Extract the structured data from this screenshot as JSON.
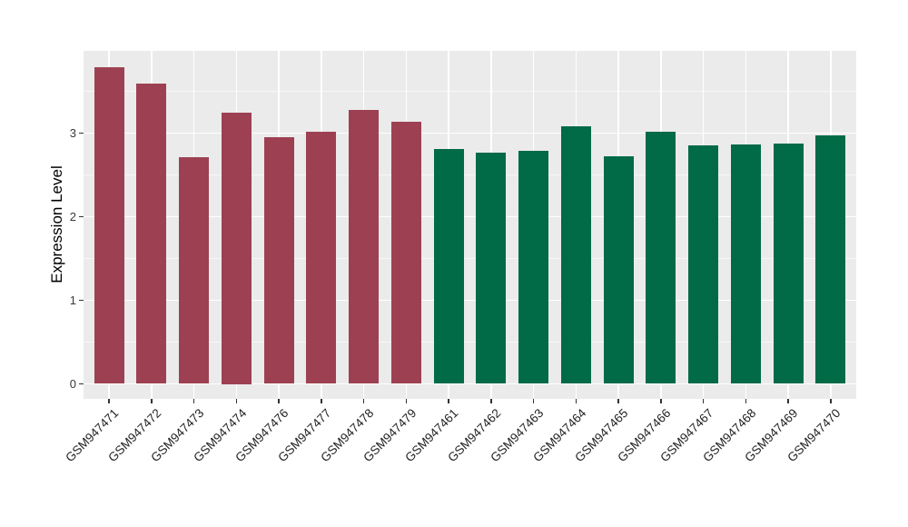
{
  "figure": {
    "background_color": "#FFFFFF",
    "panel_background_color": "#EBEBEB",
    "gridline_color": "#FFFFFF",
    "axis_text_color": "#383838",
    "group_colors": {
      "left_group": "#9D4152",
      "right_group": "#016A47"
    }
  },
  "chart_data": {
    "type": "bar",
    "title": "",
    "xlabel": "",
    "ylabel": "Expression Level",
    "ylim": [
      -0.18,
      3.98
    ],
    "yticks": [
      0,
      1,
      2,
      3
    ],
    "grid": {
      "major": [
        0,
        1,
        2,
        3
      ],
      "minor": [
        0.5,
        1.5,
        2.5,
        3.5
      ],
      "grid_on": true
    },
    "legend": "none",
    "bars": [
      {
        "label": "GSM947471",
        "value": 3.79,
        "color": "#9D4152"
      },
      {
        "label": "GSM947472",
        "value": 3.59,
        "color": "#9D4152"
      },
      {
        "label": "GSM947473",
        "value": 2.71,
        "color": "#9D4152"
      },
      {
        "label": "GSM947474",
        "value": 3.25,
        "color": "#9D4152"
      },
      {
        "label": "GSM947476",
        "value": 2.95,
        "color": "#9D4152"
      },
      {
        "label": "GSM947477",
        "value": 3.02,
        "color": "#9D4152"
      },
      {
        "label": "GSM947478",
        "value": 3.28,
        "color": "#9D4152"
      },
      {
        "label": "GSM947479",
        "value": 3.14,
        "color": "#9D4152"
      },
      {
        "label": "GSM947461",
        "value": 2.81,
        "color": "#016A47"
      },
      {
        "label": "GSM947462",
        "value": 2.77,
        "color": "#016A47"
      },
      {
        "label": "GSM947463",
        "value": 2.79,
        "color": "#016A47"
      },
      {
        "label": "GSM947464",
        "value": 3.08,
        "color": "#016A47"
      },
      {
        "label": "GSM947465",
        "value": 2.72,
        "color": "#016A47"
      },
      {
        "label": "GSM947466",
        "value": 3.02,
        "color": "#016A47"
      },
      {
        "label": "GSM947467",
        "value": 2.85,
        "color": "#016A47"
      },
      {
        "label": "GSM947468",
        "value": 2.86,
        "color": "#016A47"
      },
      {
        "label": "GSM947469",
        "value": 2.88,
        "color": "#016A47"
      },
      {
        "label": "GSM947470",
        "value": 2.97,
        "color": "#016A47"
      }
    ]
  }
}
